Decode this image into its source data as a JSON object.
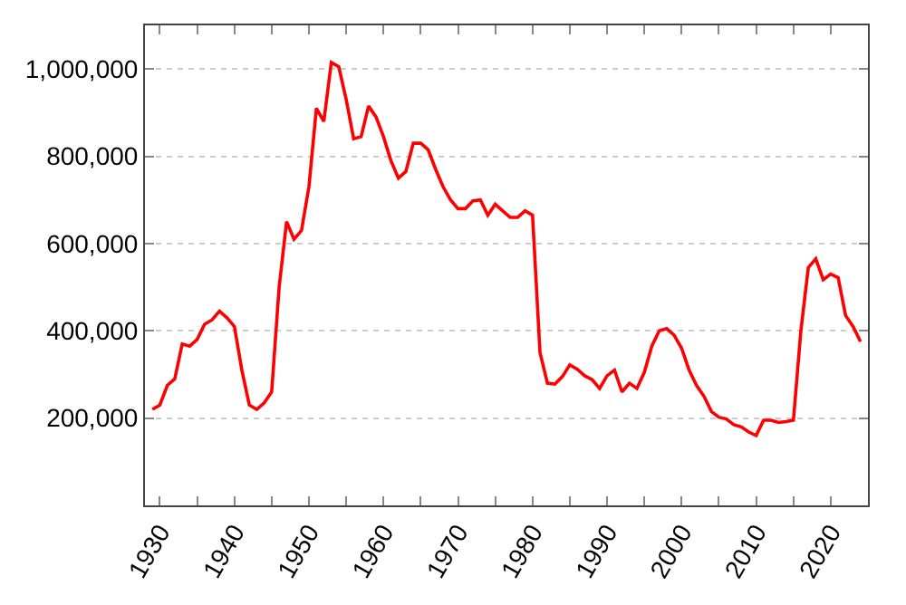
{
  "chart_data": {
    "type": "line",
    "x": [
      1929,
      1930,
      1931,
      1932,
      1933,
      1934,
      1935,
      1936,
      1937,
      1938,
      1939,
      1940,
      1941,
      1942,
      1943,
      1944,
      1945,
      1946,
      1947,
      1948,
      1949,
      1950,
      1951,
      1952,
      1953,
      1954,
      1955,
      1956,
      1957,
      1958,
      1959,
      1960,
      1961,
      1962,
      1963,
      1964,
      1965,
      1966,
      1967,
      1968,
      1969,
      1970,
      1971,
      1972,
      1973,
      1974,
      1975,
      1976,
      1977,
      1978,
      1979,
      1980,
      1981,
      1982,
      1983,
      1984,
      1985,
      1986,
      1987,
      1988,
      1989,
      1990,
      1991,
      1992,
      1993,
      1994,
      1995,
      1996,
      1997,
      1998,
      1999,
      2000,
      2001,
      2002,
      2003,
      2004,
      2005,
      2006,
      2007,
      2008,
      2009,
      2010,
      2011,
      2012,
      2013,
      2014,
      2015,
      2016,
      2017,
      2018,
      2019,
      2020,
      2021,
      2022,
      2023,
      2024
    ],
    "series": [
      {
        "color": "#ff0000",
        "values": [
          220000,
          230000,
          275000,
          290000,
          370000,
          365000,
          380000,
          415000,
          425000,
          445000,
          430000,
          410000,
          310000,
          230000,
          220000,
          235000,
          260000,
          500000,
          650000,
          610000,
          630000,
          730000,
          910000,
          880000,
          1015000,
          1005000,
          930000,
          840000,
          845000,
          915000,
          890000,
          845000,
          790000,
          750000,
          765000,
          830000,
          830000,
          815000,
          770000,
          730000,
          700000,
          680000,
          680000,
          698000,
          700000,
          665000,
          690000,
          675000,
          660000,
          660000,
          675000,
          665000,
          350000,
          280000,
          278000,
          295000,
          322000,
          312000,
          297000,
          288000,
          268000,
          297000,
          310000,
          260000,
          280000,
          268000,
          305000,
          365000,
          400000,
          405000,
          390000,
          360000,
          310000,
          275000,
          250000,
          215000,
          202000,
          198000,
          185000,
          180000,
          168000,
          160000,
          195000,
          195000,
          190000,
          192000,
          195000,
          400000,
          545000,
          565000,
          517000,
          530000,
          522000,
          435000,
          410000,
          375000
        ]
      }
    ],
    "xlim": [
      1928,
      2025
    ],
    "ylim": [
      0,
      1100000
    ],
    "xticks": [
      1930,
      {
        "value": 1935,
        "label": null
      },
      1940,
      {
        "value": 1945,
        "label": null
      },
      1950,
      {
        "value": 1955,
        "label": null
      },
      1960,
      {
        "value": 1965,
        "label": null
      },
      1970,
      {
        "value": 1975,
        "label": null
      },
      1980,
      {
        "value": 1985,
        "label": null
      },
      1990,
      {
        "value": 1995,
        "label": null
      },
      2000,
      {
        "value": 2005,
        "label": null
      },
      2010,
      {
        "value": 2015,
        "label": null
      },
      2020
    ],
    "yticks": [
      {
        "value": 200000,
        "label": "200,000"
      },
      {
        "value": 400000,
        "label": "400,000"
      },
      {
        "value": 600000,
        "label": "600,000"
      },
      {
        "value": 800000,
        "label": "800,000"
      },
      {
        "value": 1000000,
        "label": "1,000,000"
      }
    ],
    "grid": "y",
    "marker": "none",
    "line_style": "solid"
  }
}
